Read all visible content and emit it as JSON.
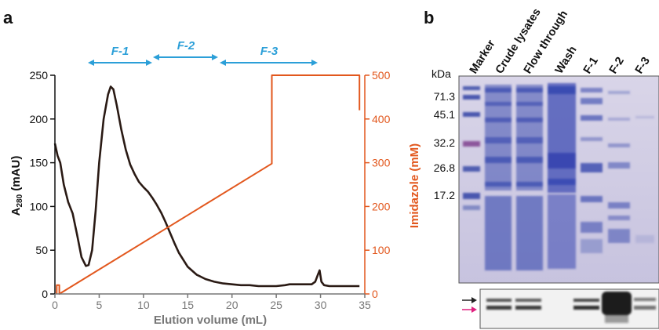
{
  "panel_a": {
    "letter": "a",
    "fractions": [
      "F-1",
      "F-2",
      "F-3"
    ],
    "colors": {
      "trace": "#2a1a14",
      "imidazole": "#e2571d",
      "fraction_arrows": "#2b9fd8"
    }
  },
  "panel_b": {
    "letter": "b",
    "kda_label": "kDa",
    "lanes": [
      "Marker",
      "Crude lysates",
      "Flow through",
      "Wash",
      "F-1",
      "F-2",
      "F-3"
    ],
    "markers_kda": [
      "71.3",
      "45.1",
      "32.2",
      "26.8",
      "17.2"
    ],
    "arrow_colors": {
      "upper": "#222222",
      "lower": "#e0207f"
    }
  },
  "chart_data": {
    "type": "line",
    "xlabel": "Elution volume (mL)",
    "ylabel": "A280 (mAU)",
    "ylabel_main": "A",
    "ylabel_sub": "280",
    "ylabel_unit": " (mAU)",
    "y2label": "Imidazole (mM)",
    "xlim": [
      0,
      35
    ],
    "ylim": [
      0,
      250
    ],
    "y2lim": [
      0,
      500
    ],
    "xticks": [
      0,
      5,
      10,
      15,
      20,
      25,
      30,
      35
    ],
    "yticks": [
      0,
      50,
      100,
      150,
      200,
      250
    ],
    "y2ticks": [
      0,
      100,
      200,
      300,
      400,
      500
    ],
    "grid": false,
    "series": [
      {
        "axis": "left",
        "x": [
          0,
          0.3,
          0.6,
          1.0,
          1.5,
          2.0,
          2.5,
          3.0,
          3.5,
          3.8,
          4.2,
          4.6,
          5.0,
          5.5,
          6.0,
          6.3,
          6.6,
          7.0,
          7.5,
          8.0,
          8.5,
          9.0,
          9.5,
          10.0,
          10.5,
          11.0,
          11.5,
          12.0,
          12.5,
          13.0,
          13.5,
          14.0,
          15.0,
          16.0,
          17.0,
          18.0,
          19.0,
          20.0,
          21.0,
          22.0,
          23.0,
          24.0,
          25.0,
          26.0,
          26.5,
          27.0,
          28.0,
          29.0,
          29.4,
          29.7,
          29.9,
          30.1,
          30.4,
          31.0,
          32.0,
          33.0,
          34.0,
          34.4
        ],
        "y": [
          172,
          158,
          150,
          125,
          105,
          92,
          68,
          42,
          32,
          33,
          50,
          95,
          150,
          200,
          228,
          237,
          234,
          215,
          188,
          165,
          148,
          137,
          128,
          122,
          117,
          110,
          102,
          93,
          82,
          70,
          58,
          47,
          31,
          22,
          17,
          14,
          12,
          11,
          10,
          10,
          9,
          9,
          9,
          10,
          11,
          11,
          11,
          11,
          14,
          22,
          27,
          14,
          10,
          9,
          9,
          9,
          9,
          9
        ]
      },
      {
        "axis": "right",
        "x": [
          0.2,
          0.2,
          0.5,
          0.5,
          24.5,
          24.5,
          34.4,
          34.4
        ],
        "y": [
          0,
          20,
          20,
          0,
          298,
          500,
          500,
          420
        ]
      }
    ]
  }
}
